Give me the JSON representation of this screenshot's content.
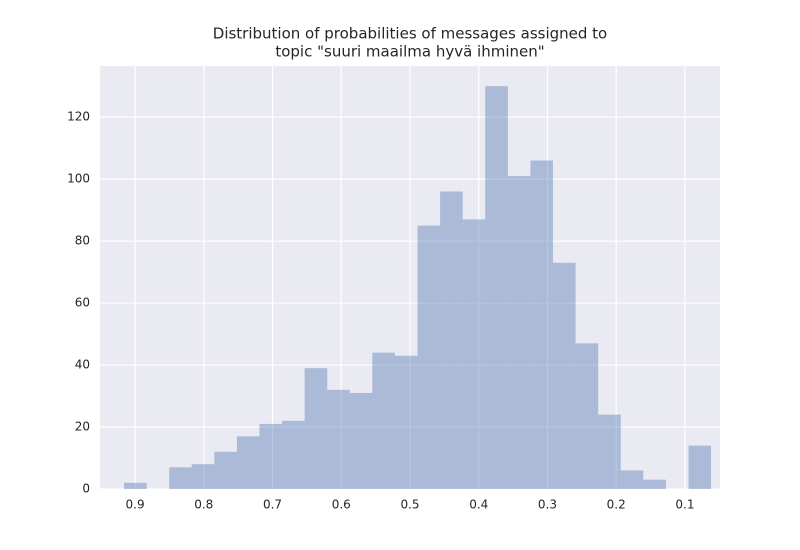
{
  "chart_data": {
    "type": "histogram",
    "title": [
      "Distribution of probabilities of messages assigned to",
      "topic \"suuri maailma hyvä ihminen\""
    ],
    "bins": [
      0.062,
      0.0948,
      0.1277,
      0.1606,
      0.1934,
      0.2262,
      0.2591,
      0.292,
      0.3248,
      0.3576,
      0.3905,
      0.4234,
      0.4562,
      0.489,
      0.5219,
      0.5548,
      0.5876,
      0.6204,
      0.6533,
      0.6862,
      0.719,
      0.7518,
      0.7847,
      0.8176,
      0.8504,
      0.8832,
      0.9161
    ],
    "counts": [
      14,
      0,
      3,
      6,
      24,
      47,
      73,
      106,
      101,
      130,
      87,
      96,
      85,
      43,
      44,
      31,
      32,
      39,
      22,
      21,
      17,
      12,
      8,
      7,
      0,
      2
    ],
    "color": "#4c72b0",
    "xlim": [
      0.951,
      0.049
    ],
    "xticks": [
      0.9,
      0.8,
      0.7,
      0.6,
      0.5,
      0.4,
      0.3,
      0.2,
      0.1
    ],
    "ylim": [
      0,
      136.5
    ],
    "yticks": [
      0,
      20,
      40,
      60,
      80,
      100,
      120
    ],
    "grid": true
  }
}
